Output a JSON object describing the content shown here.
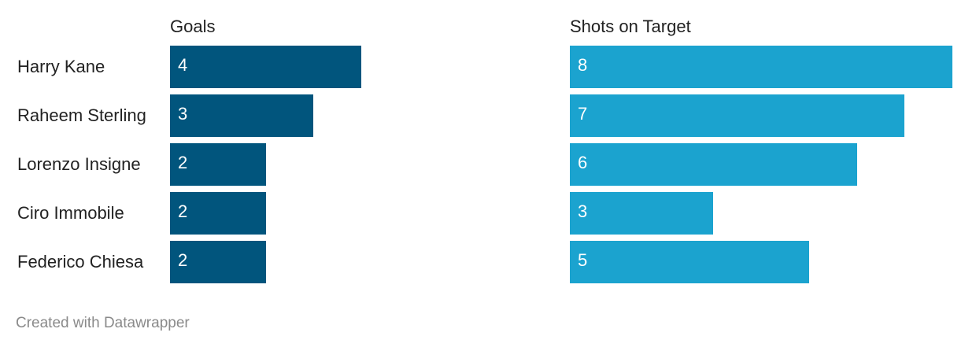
{
  "chart_data": {
    "type": "bar",
    "orientation": "horizontal",
    "categories": [
      "Harry Kane",
      "Raheem Sterling",
      "Lorenzo Insigne",
      "Ciro Immobile",
      "Federico Chiesa"
    ],
    "series": [
      {
        "name": "Goals",
        "values": [
          4,
          3,
          2,
          2,
          2
        ],
        "color": "#01557d"
      },
      {
        "name": "Shots on Target",
        "values": [
          8,
          7,
          6,
          3,
          5
        ],
        "color": "#1ba3cf"
      }
    ],
    "xlim": [
      0,
      8
    ],
    "grid": false,
    "legend": "none"
  },
  "footer": {
    "credit": "Created with Datawrapper"
  }
}
